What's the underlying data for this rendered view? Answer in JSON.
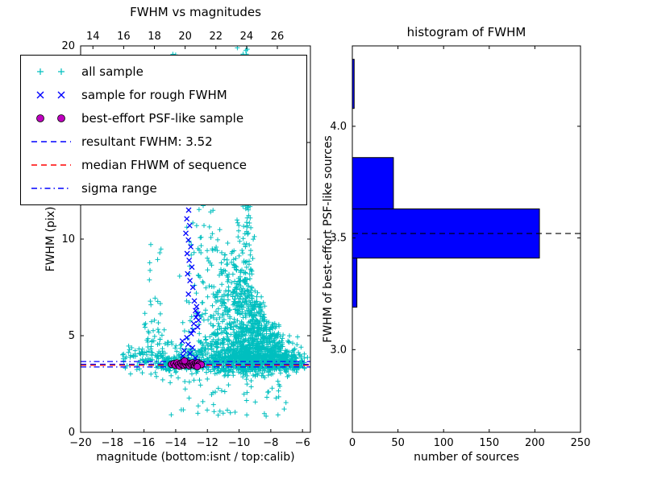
{
  "chart_data": [
    {
      "type": "scatter",
      "title": "FWHM vs magnitudes",
      "xlabel": "magnitude (bottom:isnt / top:calib)",
      "ylabel": "FWHM (pix)",
      "xlim": [
        -20,
        -5.5
      ],
      "ylim": [
        0,
        20
      ],
      "x_tick_values": [
        -20,
        -18,
        -16,
        -14,
        -12,
        -10,
        -8,
        -6
      ],
      "x_tick_labels": [
        "−20",
        "−18",
        "−16",
        "−14",
        "−12",
        "−10",
        "−8",
        "−6"
      ],
      "y_tick_values": [
        0,
        5,
        10,
        15,
        20
      ],
      "y_tick_labels": [
        "0",
        "5",
        "10",
        "15",
        "20"
      ],
      "top_lim": [
        13.2,
        28.15
      ],
      "top_tick_values": [
        14,
        16,
        18,
        20,
        22,
        24,
        26
      ],
      "top_tick_labels": [
        "14",
        "16",
        "18",
        "20",
        "22",
        "24",
        "26"
      ],
      "series": [
        {
          "name": "all sample",
          "marker": "plus",
          "color": "#00bfbf",
          "seed": 7,
          "n_total": 2475,
          "clusters": [
            {
              "kind": "band",
              "n": 550,
              "xa": -15.2,
              "xb": -6.0,
              "mu": 3.6,
              "sigma": 0.26
            },
            {
              "kind": "band",
              "n": 180,
              "xa": -15.0,
              "xb": -6.2,
              "mu": 4.15,
              "sigma": 0.5
            },
            {
              "kind": "band",
              "n": 60,
              "xa": -17.4,
              "xb": -15.2,
              "mu": 3.7,
              "sigma": 0.35
            },
            {
              "kind": "cloud",
              "n": 1200,
              "mux": -9.4,
              "sigx": 1.4,
              "xa": -13.8,
              "xb": -5.6,
              "ybase": 3.6,
              "slope": 1.25,
              "xref": -6.2,
              "pow": 2.0,
              "jitter": 0.35
            },
            {
              "kind": "column",
              "n": 230,
              "mux": -9.55,
              "sigx": 0.3,
              "ya": 3.5,
              "yb": 20.0
            },
            {
              "kind": "column",
              "n": 110,
              "mux": -12.2,
              "sigx": 0.7,
              "ya": 4.0,
              "yb": 20.0
            },
            {
              "kind": "spray",
              "n": 60,
              "xa": -14.5,
              "xb": -7.0,
              "ya": 0.8,
              "yb": 3.3
            },
            {
              "kind": "halfcloud",
              "n": 50,
              "xa": -16.0,
              "xb": -14.8,
              "base": 3.5,
              "sigma": 2.2
            },
            {
              "kind": "spray",
              "n": 35,
              "xa": -14.5,
              "xb": -8.5,
              "ya": 12.0,
              "yb": 20.0
            }
          ]
        },
        {
          "name": "sample for rough FWHM",
          "marker": "x",
          "color": "#0000ff",
          "points": [
            [
              -13.42,
              11.95
            ],
            [
              -13.18,
              11.5
            ],
            [
              -13.3,
              11.05
            ],
            [
              -13.12,
              10.7
            ],
            [
              -13.36,
              10.3
            ],
            [
              -13.2,
              9.95
            ],
            [
              -13.05,
              9.6
            ],
            [
              -13.28,
              9.25
            ],
            [
              -13.15,
              8.9
            ],
            [
              -12.98,
              8.55
            ],
            [
              -13.25,
              8.2
            ],
            [
              -13.1,
              7.85
            ],
            [
              -12.92,
              7.5
            ],
            [
              -13.2,
              7.15
            ],
            [
              -12.82,
              6.8
            ],
            [
              -12.68,
              6.5
            ],
            [
              -12.75,
              6.3
            ],
            [
              -12.6,
              6.12
            ],
            [
              -12.72,
              5.95
            ],
            [
              -12.56,
              5.8
            ],
            [
              -12.86,
              5.62
            ],
            [
              -12.62,
              5.45
            ],
            [
              -12.9,
              5.28
            ],
            [
              -13.02,
              5.1
            ],
            [
              -13.3,
              4.9
            ],
            [
              -13.58,
              4.72
            ],
            [
              -13.22,
              4.55
            ],
            [
              -12.94,
              4.38
            ],
            [
              -13.46,
              4.22
            ],
            [
              -13.1,
              4.08
            ],
            [
              -13.55,
              3.95
            ],
            [
              -12.76,
              3.85
            ],
            [
              -13.32,
              3.76
            ],
            [
              -12.62,
              3.68
            ],
            [
              -13.02,
              3.62
            ],
            [
              -13.5,
              3.56
            ],
            [
              -12.86,
              3.5
            ],
            [
              -13.2,
              3.46
            ],
            [
              -12.5,
              3.56
            ],
            [
              -13.66,
              3.6
            ],
            [
              -12.42,
              3.5
            ],
            [
              -13.4,
              3.52
            ]
          ]
        },
        {
          "name": "best-effort PSF-like sample",
          "marker": "circle",
          "color": "#bf00bf",
          "edge": "#000000",
          "points": [
            [
              -14.28,
              3.52
            ],
            [
              -14.12,
              3.56
            ],
            [
              -14.02,
              3.46
            ],
            [
              -13.92,
              3.6
            ],
            [
              -13.84,
              3.5
            ],
            [
              -13.76,
              3.42
            ],
            [
              -13.68,
              3.56
            ],
            [
              -13.6,
              3.5
            ],
            [
              -13.54,
              3.64
            ],
            [
              -13.48,
              3.46
            ],
            [
              -13.4,
              3.56
            ],
            [
              -13.34,
              3.5
            ],
            [
              -13.28,
              3.6
            ],
            [
              -13.2,
              3.52
            ],
            [
              -13.14,
              3.44
            ],
            [
              -13.08,
              3.56
            ],
            [
              -13.0,
              3.5
            ],
            [
              -12.94,
              3.6
            ],
            [
              -12.88,
              3.5
            ],
            [
              -12.8,
              3.46
            ],
            [
              -12.74,
              3.56
            ],
            [
              -12.68,
              3.5
            ],
            [
              -12.6,
              3.6
            ],
            [
              -12.54,
              3.5
            ],
            [
              -12.46,
              3.55
            ],
            [
              -12.38,
              3.5
            ],
            [
              -13.44,
              3.7
            ],
            [
              -12.64,
              3.4
            ]
          ]
        }
      ],
      "hlines": [
        {
          "name": "resultant FWHM",
          "y": 3.52,
          "color": "#0000ff",
          "style": "dashed"
        },
        {
          "name": "median FWHM of sequence",
          "y": 3.47,
          "color": "#ff0000",
          "style": "dashed"
        },
        {
          "name": "sigma range low",
          "y": 3.38,
          "color": "#0000ff",
          "style": "dashdot"
        },
        {
          "name": "sigma range high",
          "y": 3.66,
          "color": "#0000ff",
          "style": "dashdot"
        }
      ],
      "legend": [
        {
          "label": "all sample",
          "type": "marker",
          "marker": "plus",
          "color": "#00bfbf"
        },
        {
          "label": "sample for rough FWHM",
          "type": "marker",
          "marker": "x",
          "color": "#0000ff"
        },
        {
          "label": "best-effort PSF-like sample",
          "type": "marker",
          "marker": "circle",
          "color": "#bf00bf",
          "edge": "#000000"
        },
        {
          "label": "resultant FWHM: 3.52",
          "type": "line",
          "style": "dashed",
          "color": "#0000ff"
        },
        {
          "label": "median FHWM of sequence",
          "type": "line",
          "style": "dashed",
          "color": "#ff0000"
        },
        {
          "label": "sigma range",
          "type": "line",
          "style": "dashdot",
          "color": "#0000ff"
        }
      ]
    },
    {
      "type": "bar",
      "orientation": "horizontal",
      "title": "histogram of FWHM",
      "xlabel": "number of sources",
      "ylabel": "FWHM of best-effort PSF-like sources",
      "xlim": [
        0,
        250
      ],
      "ylim": [
        2.63,
        4.36
      ],
      "x_tick_values": [
        0,
        50,
        100,
        150,
        200,
        250
      ],
      "x_tick_labels": [
        "0",
        "50",
        "100",
        "150",
        "200",
        "250"
      ],
      "y_tick_values": [
        3.0,
        3.5,
        4.0
      ],
      "y_tick_labels": [
        "3.0",
        "3.5",
        "4.0"
      ],
      "bin_edges": [
        3.19,
        3.41,
        3.63,
        3.86,
        4.08,
        4.3
      ],
      "counts": [
        5,
        205,
        45,
        0,
        2
      ],
      "bar_color": "#0000ff",
      "bar_edge": "#000000",
      "median_line": {
        "y": 3.52,
        "color": "#000000",
        "style": "dashed"
      }
    }
  ]
}
